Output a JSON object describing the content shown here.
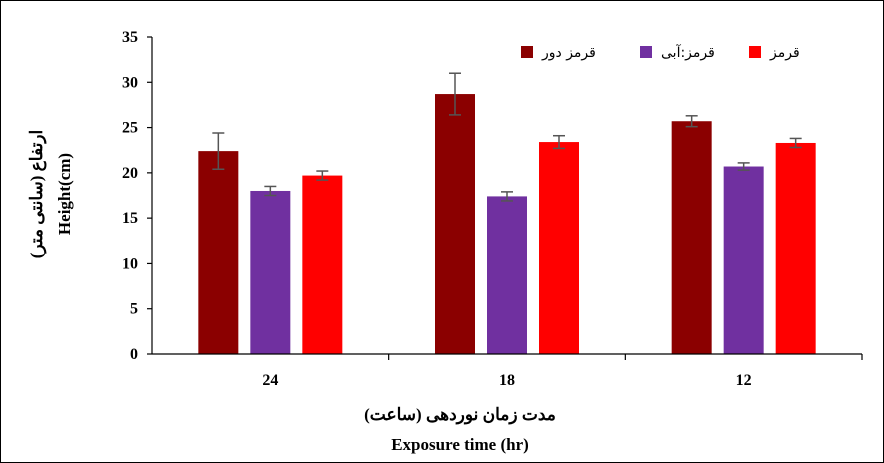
{
  "chart_data": {
    "type": "bar",
    "categories": [
      "24",
      "18",
      "12"
    ],
    "series": [
      {
        "name": "قرمز دور",
        "color": "#8B0000",
        "values": [
          22.4,
          28.7,
          25.7
        ],
        "errors": [
          2.0,
          2.3,
          0.6
        ]
      },
      {
        "name": "قرمز:آبی",
        "color": "#7030A0",
        "values": [
          18.0,
          17.4,
          20.7
        ],
        "errors": [
          0.5,
          0.5,
          0.4
        ]
      },
      {
        "name": "قرمز",
        "color": "#FF0000",
        "values": [
          19.7,
          23.4,
          23.3
        ],
        "errors": [
          0.5,
          0.7,
          0.5
        ]
      }
    ],
    "ylim": [
      0,
      35
    ],
    "yticks": [
      0,
      5,
      10,
      15,
      20,
      25,
      30,
      35
    ],
    "ylabel_fa": "ارتفاع (سانتی متر)",
    "ylabel_en": "Height(cm)",
    "xlabel_fa": "مدت زمان نوردهی (ساعت)",
    "xlabel_en": "Exposure time (hr)",
    "legend_position": "top-right",
    "grid": false
  }
}
